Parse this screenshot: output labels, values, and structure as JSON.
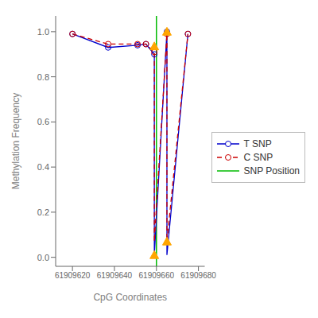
{
  "chart_data": {
    "type": "line",
    "x_label": "CpG Coordinates",
    "y_label": "Methylation Frequency",
    "xlim": [
      61909612,
      61909683
    ],
    "ylim": [
      -0.04,
      1.07
    ],
    "xticks": [
      61909620,
      61909640,
      61909660,
      61909680
    ],
    "yticks": [
      {
        "value": 0.0,
        "label": "0.0"
      },
      0.2,
      0.4,
      0.6,
      0.8,
      {
        "value": 1.0,
        "label": "1.0"
      }
    ],
    "grid": false,
    "legend": "right",
    "series": [
      {
        "name": "T SNP",
        "color": "#0000cc",
        "line_style": "solid",
        "marker": "circle",
        "x": [
          61909620,
          61909637,
          61909651,
          61909655,
          61909659,
          61909659,
          61909665,
          61909665,
          61909675
        ],
        "values": [
          0.99,
          0.93,
          0.94,
          0.945,
          0.9,
          0.01,
          1.0,
          0.01,
          0.99
        ],
        "marker_x": [
          61909620,
          61909637,
          61909651,
          61909655,
          61909659,
          61909665,
          61909675
        ],
        "marker_values": [
          0.99,
          0.93,
          0.94,
          0.945,
          0.9,
          1.0,
          0.99
        ]
      },
      {
        "name": "C SNP",
        "color": "#cc0000",
        "line_style": "dashed",
        "marker": "circle",
        "x": [
          61909620,
          61909637,
          61909651,
          61909655,
          61909659,
          61909659,
          61909665,
          61909665,
          61909675
        ],
        "values": [
          0.99,
          0.945,
          0.945,
          0.945,
          0.91,
          0.07,
          0.99,
          0.07,
          0.99
        ],
        "marker_x": [
          61909620,
          61909637,
          61909651,
          61909655,
          61909659,
          61909665,
          61909675
        ],
        "marker_values": [
          0.99,
          0.945,
          0.945,
          0.945,
          0.91,
          0.99,
          0.99
        ]
      }
    ],
    "vlines": [
      {
        "name": "SNP Position",
        "x": 61909660,
        "color": "#00bb00",
        "line_style": "solid"
      }
    ],
    "markers": [
      {
        "color": "#FFA500",
        "marker": "triangle",
        "x": [
          61909659,
          61909659,
          61909665,
          61909665
        ],
        "values": [
          0.935,
          0.01,
          1.0,
          0.07
        ]
      }
    ]
  }
}
